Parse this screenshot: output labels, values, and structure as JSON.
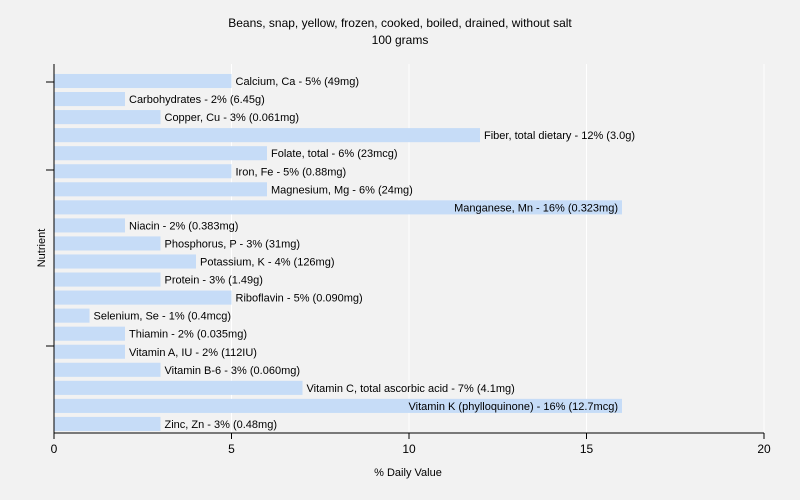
{
  "chart_data": {
    "type": "bar",
    "orientation": "horizontal",
    "title": "Beans, snap, yellow, frozen, cooked, boiled, drained, without salt",
    "subtitle": "100 grams",
    "xlabel": "% Daily Value",
    "ylabel": "Nutrient",
    "xlim": [
      0,
      20
    ],
    "xticks": [
      0,
      5,
      10,
      15,
      20
    ],
    "grid": true,
    "bar_color": "#c6dcf7",
    "categories": [
      "Calcium, Ca - 5% (49mg)",
      "Carbohydrates - 2% (6.45g)",
      "Copper, Cu - 3% (0.061mg)",
      "Fiber, total dietary - 12% (3.0g)",
      "Folate, total - 6% (23mcg)",
      "Iron, Fe - 5% (0.88mg)",
      "Magnesium, Mg - 6% (24mg)",
      "Manganese, Mn - 16% (0.323mg)",
      "Niacin - 2% (0.383mg)",
      "Phosphorus, P - 3% (31mg)",
      "Potassium, K - 4% (126mg)",
      "Protein - 3% (1.49g)",
      "Riboflavin - 5% (0.090mg)",
      "Selenium, Se - 1% (0.4mcg)",
      "Thiamin - 2% (0.035mg)",
      "Vitamin A, IU - 2% (112IU)",
      "Vitamin B-6 - 3% (0.060mg)",
      "Vitamin C, total ascorbic acid - 7% (4.1mg)",
      "Vitamin K (phylloquinone) - 16% (12.7mcg)",
      "Zinc, Zn - 3% (0.48mg)"
    ],
    "values": [
      5,
      2,
      3,
      12,
      6,
      5,
      6,
      16,
      2,
      3,
      4,
      3,
      5,
      1,
      2,
      2,
      3,
      7,
      16,
      3
    ]
  }
}
